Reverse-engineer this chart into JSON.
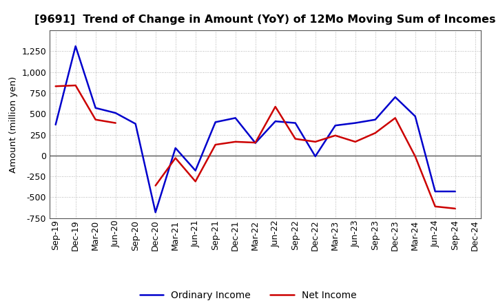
{
  "title": "[9691]  Trend of Change in Amount (YoY) of 12Mo Moving Sum of Incomes",
  "ylabel": "Amount (million yen)",
  "x_labels": [
    "Sep-19",
    "Dec-19",
    "Mar-20",
    "Jun-20",
    "Sep-20",
    "Dec-20",
    "Mar-21",
    "Jun-21",
    "Sep-21",
    "Dec-21",
    "Mar-22",
    "Jun-22",
    "Sep-22",
    "Dec-22",
    "Mar-23",
    "Jun-23",
    "Sep-23",
    "Dec-23",
    "Mar-24",
    "Jun-24",
    "Sep-24",
    "Dec-24"
  ],
  "ordinary_income": [
    370,
    1310,
    570,
    510,
    380,
    -680,
    90,
    -180,
    400,
    450,
    150,
    410,
    390,
    -10,
    360,
    390,
    430,
    700,
    470,
    -430,
    -430,
    null
  ],
  "net_income": [
    830,
    840,
    430,
    390,
    null,
    -360,
    -30,
    -310,
    130,
    165,
    155,
    585,
    200,
    165,
    240,
    165,
    270,
    450,
    -10,
    -610,
    -635,
    null
  ],
  "ylim": [
    -750,
    1500
  ],
  "yticks": [
    -750,
    -500,
    -250,
    0,
    250,
    500,
    750,
    1000,
    1250
  ],
  "ordinary_color": "#0000cc",
  "net_color": "#cc0000",
  "line_width": 1.8,
  "background_color": "#ffffff",
  "plot_bg_color": "#f0f0f0",
  "grid_color": "#999999",
  "title_fontsize": 11.5,
  "legend_fontsize": 10,
  "tick_fontsize": 9
}
